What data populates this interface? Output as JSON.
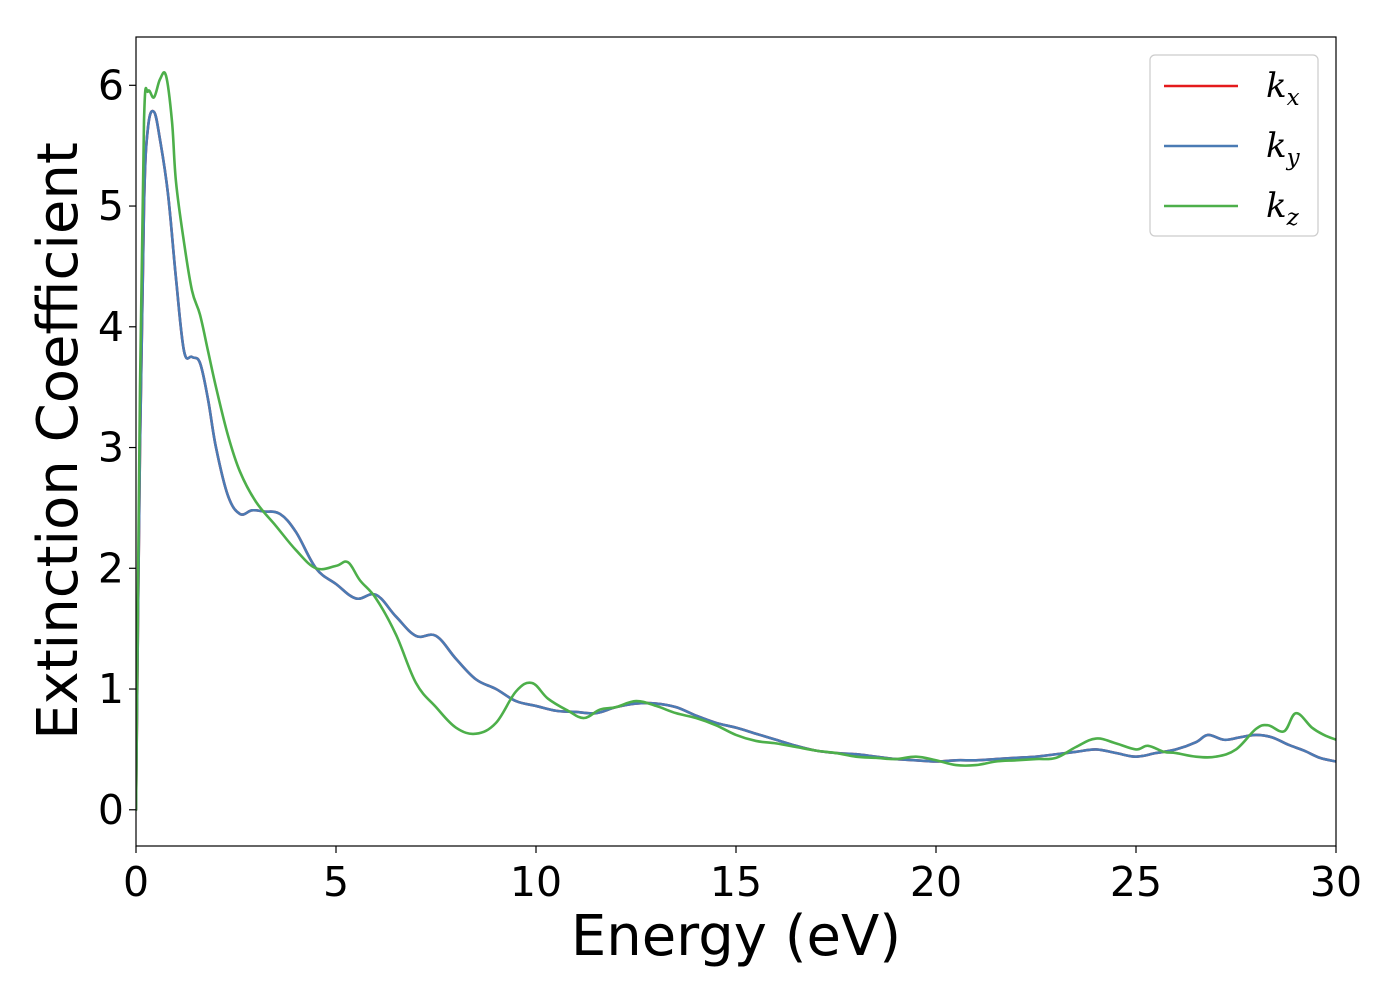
{
  "chart_data": {
    "type": "line",
    "title": "",
    "xlabel": "Energy (eV)",
    "ylabel": "Extinction Coefficient",
    "xlim": [
      0,
      30
    ],
    "ylim": [
      -0.3,
      6.4
    ],
    "xticks": [
      0,
      5,
      10,
      15,
      20,
      25,
      30
    ],
    "yticks": [
      0,
      1,
      2,
      3,
      4,
      5,
      6
    ],
    "grid": false,
    "legend_position": "top-right",
    "series": [
      {
        "name": "k",
        "subscript": "x",
        "color": "#e41a1c",
        "x": [
          0,
          0.1,
          0.2,
          0.3,
          0.45,
          0.6,
          0.8,
          1.0,
          1.2,
          1.4,
          1.6,
          1.8,
          2.0,
          2.3,
          2.6,
          2.9,
          3.2,
          3.6,
          4.0,
          4.5,
          5.0,
          5.5,
          6.0,
          6.5,
          7.0,
          7.5,
          8.0,
          8.5,
          9.0,
          9.5,
          10.0,
          10.5,
          11.0,
          11.5,
          12.0,
          12.5,
          13.0,
          13.5,
          14.0,
          14.5,
          15.0,
          15.5,
          16.0,
          16.5,
          17.0,
          17.5,
          18.0,
          18.5,
          19.0,
          19.5,
          20.0,
          20.5,
          21.0,
          21.5,
          22.0,
          22.5,
          23.0,
          23.5,
          24.0,
          24.5,
          25.0,
          25.5,
          26.0,
          26.5,
          26.8,
          27.2,
          27.6,
          28.0,
          28.4,
          28.8,
          29.2,
          29.6,
          30.0
        ],
        "y": [
          0,
          3.0,
          5.0,
          5.65,
          5.78,
          5.55,
          5.1,
          4.4,
          3.8,
          3.75,
          3.7,
          3.4,
          3.0,
          2.6,
          2.45,
          2.48,
          2.47,
          2.45,
          2.3,
          2.0,
          1.87,
          1.75,
          1.78,
          1.6,
          1.44,
          1.44,
          1.25,
          1.08,
          1.0,
          0.9,
          0.86,
          0.82,
          0.81,
          0.8,
          0.85,
          0.88,
          0.88,
          0.85,
          0.78,
          0.72,
          0.68,
          0.63,
          0.58,
          0.53,
          0.49,
          0.47,
          0.46,
          0.44,
          0.42,
          0.41,
          0.4,
          0.41,
          0.41,
          0.42,
          0.43,
          0.44,
          0.46,
          0.48,
          0.5,
          0.47,
          0.44,
          0.47,
          0.5,
          0.56,
          0.62,
          0.58,
          0.6,
          0.62,
          0.6,
          0.54,
          0.49,
          0.43,
          0.4
        ]
      },
      {
        "name": "k",
        "subscript": "y",
        "color": "#4a7bb4",
        "x": [
          0,
          0.1,
          0.2,
          0.3,
          0.45,
          0.6,
          0.8,
          1.0,
          1.2,
          1.4,
          1.6,
          1.8,
          2.0,
          2.3,
          2.6,
          2.9,
          3.2,
          3.6,
          4.0,
          4.5,
          5.0,
          5.5,
          6.0,
          6.5,
          7.0,
          7.5,
          8.0,
          8.5,
          9.0,
          9.5,
          10.0,
          10.5,
          11.0,
          11.5,
          12.0,
          12.5,
          13.0,
          13.5,
          14.0,
          14.5,
          15.0,
          15.5,
          16.0,
          16.5,
          17.0,
          17.5,
          18.0,
          18.5,
          19.0,
          19.5,
          20.0,
          20.5,
          21.0,
          21.5,
          22.0,
          22.5,
          23.0,
          23.5,
          24.0,
          24.5,
          25.0,
          25.5,
          26.0,
          26.5,
          26.8,
          27.2,
          27.6,
          28.0,
          28.4,
          28.8,
          29.2,
          29.6,
          30.0
        ],
        "y": [
          0,
          3.0,
          5.0,
          5.65,
          5.78,
          5.55,
          5.1,
          4.4,
          3.8,
          3.75,
          3.7,
          3.4,
          3.0,
          2.6,
          2.45,
          2.48,
          2.47,
          2.45,
          2.3,
          2.0,
          1.87,
          1.75,
          1.78,
          1.6,
          1.44,
          1.44,
          1.25,
          1.08,
          1.0,
          0.9,
          0.86,
          0.82,
          0.81,
          0.8,
          0.85,
          0.88,
          0.88,
          0.85,
          0.78,
          0.72,
          0.68,
          0.63,
          0.58,
          0.53,
          0.49,
          0.47,
          0.46,
          0.44,
          0.42,
          0.41,
          0.4,
          0.41,
          0.41,
          0.42,
          0.43,
          0.44,
          0.46,
          0.48,
          0.5,
          0.47,
          0.44,
          0.47,
          0.5,
          0.56,
          0.62,
          0.58,
          0.6,
          0.62,
          0.6,
          0.54,
          0.49,
          0.43,
          0.4
        ]
      },
      {
        "name": "k",
        "subscript": "z",
        "color": "#4daf4a",
        "x": [
          0,
          0.1,
          0.2,
          0.3,
          0.45,
          0.6,
          0.75,
          0.9,
          1.0,
          1.2,
          1.4,
          1.6,
          1.8,
          2.0,
          2.3,
          2.6,
          3.0,
          3.5,
          4.0,
          4.5,
          5.0,
          5.3,
          5.6,
          6.0,
          6.5,
          7.0,
          7.5,
          8.0,
          8.5,
          9.0,
          9.5,
          9.9,
          10.3,
          10.8,
          11.2,
          11.6,
          12.0,
          12.5,
          13.0,
          13.5,
          14.0,
          14.5,
          15.0,
          15.5,
          16.0,
          16.5,
          17.0,
          17.5,
          18.0,
          18.5,
          19.0,
          19.5,
          20.0,
          20.5,
          21.0,
          21.5,
          22.0,
          22.5,
          23.0,
          23.5,
          24.0,
          24.5,
          25.0,
          25.3,
          25.7,
          26.0,
          26.5,
          27.0,
          27.5,
          28.0,
          28.3,
          28.7,
          29.0,
          29.4,
          29.7,
          30.0
        ],
        "y": [
          0,
          3.5,
          5.7,
          5.95,
          5.9,
          6.05,
          6.08,
          5.7,
          5.2,
          4.7,
          4.3,
          4.1,
          3.8,
          3.5,
          3.1,
          2.8,
          2.55,
          2.35,
          2.15,
          2.0,
          2.02,
          2.05,
          1.9,
          1.75,
          1.45,
          1.05,
          0.85,
          0.68,
          0.63,
          0.72,
          0.98,
          1.05,
          0.92,
          0.82,
          0.76,
          0.83,
          0.85,
          0.9,
          0.86,
          0.8,
          0.76,
          0.7,
          0.62,
          0.57,
          0.55,
          0.52,
          0.49,
          0.47,
          0.44,
          0.43,
          0.42,
          0.44,
          0.41,
          0.37,
          0.37,
          0.4,
          0.41,
          0.42,
          0.43,
          0.52,
          0.59,
          0.55,
          0.5,
          0.53,
          0.48,
          0.47,
          0.44,
          0.44,
          0.5,
          0.67,
          0.7,
          0.65,
          0.8,
          0.68,
          0.62,
          0.58
        ]
      }
    ]
  }
}
